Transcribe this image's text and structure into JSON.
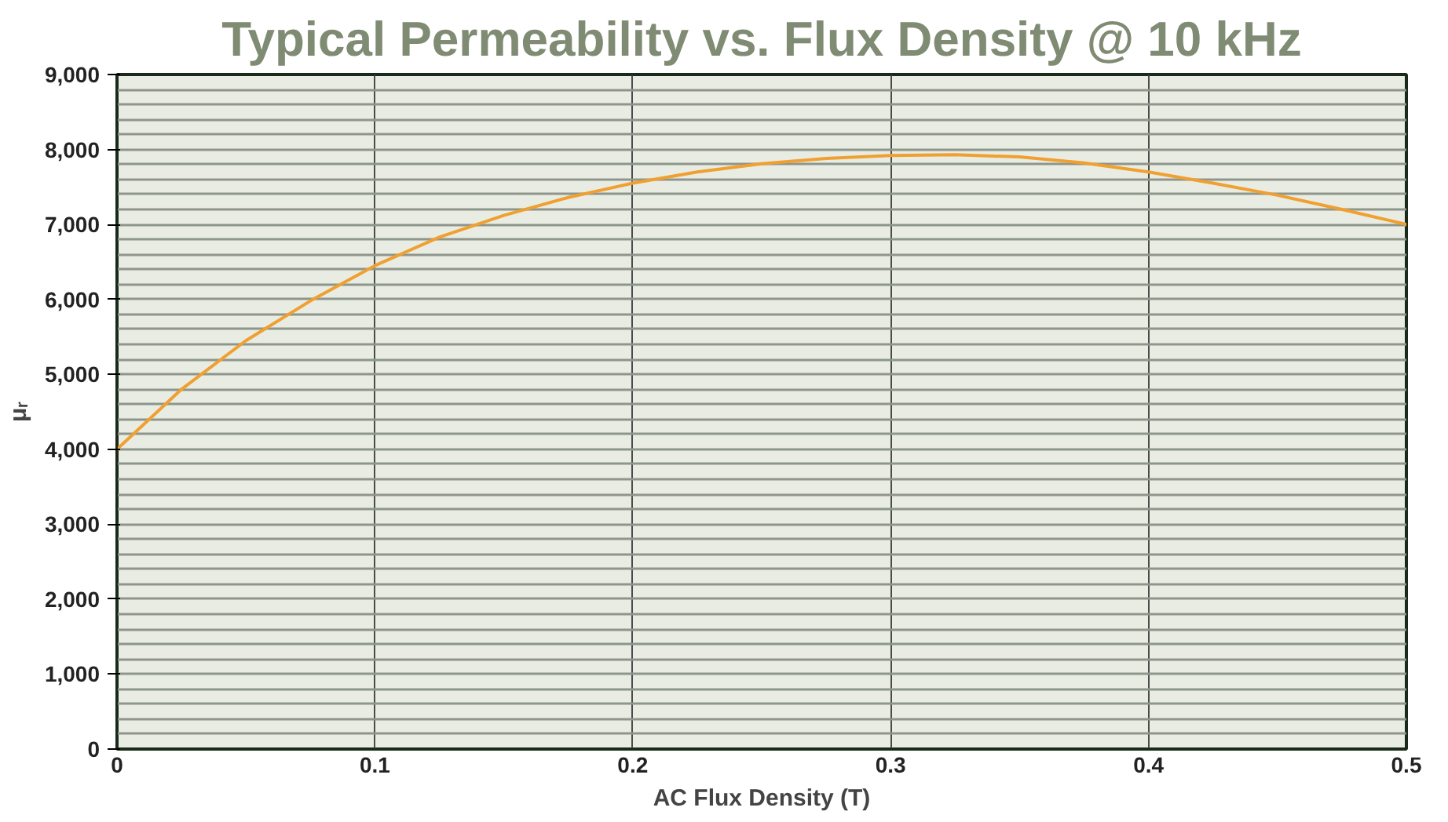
{
  "chart_data": {
    "type": "line",
    "title": "Typical Permeability vs. Flux Density @ 10 kHz",
    "xlabel": "AC Flux Density (T)",
    "ylabel": "μᵣ",
    "x": [
      0,
      0.025,
      0.05,
      0.075,
      0.1,
      0.125,
      0.15,
      0.175,
      0.2,
      0.225,
      0.25,
      0.275,
      0.3,
      0.325,
      0.35,
      0.375,
      0.4,
      0.425,
      0.45,
      0.475,
      0.5
    ],
    "series": [
      {
        "color": "#f0a030",
        "values": [
          4000,
          4800,
          5450,
          5980,
          6450,
          6830,
          7120,
          7360,
          7550,
          7700,
          7810,
          7880,
          7920,
          7930,
          7900,
          7820,
          7700,
          7550,
          7390,
          7200,
          7000
        ]
      }
    ],
    "xlim": [
      0,
      0.5
    ],
    "ylim": [
      0,
      9000
    ],
    "xticks": [
      {
        "value": 0,
        "label": "0"
      },
      0.1,
      0.2,
      0.3,
      0.4,
      0.5
    ],
    "yticks": [
      0,
      {
        "value": 1000,
        "label": "1,000"
      },
      {
        "value": 2000,
        "label": "2,000"
      },
      {
        "value": 3000,
        "label": "3,000"
      },
      {
        "value": 4000,
        "label": "4,000"
      },
      {
        "value": 5000,
        "label": "5,000"
      },
      {
        "value": 6000,
        "label": "6,000"
      },
      {
        "value": 7000,
        "label": "7,000"
      },
      {
        "value": 8000,
        "label": "8,000"
      },
      {
        "value": 9000,
        "label": "9,000"
      }
    ],
    "grid": true,
    "marker": "none",
    "line_style": "solid"
  }
}
